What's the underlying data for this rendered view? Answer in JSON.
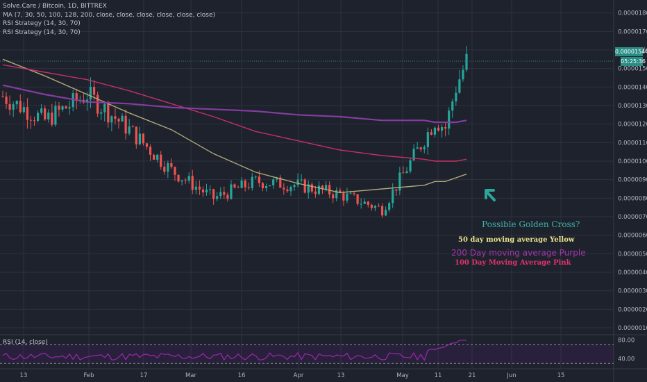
{
  "header": {
    "symbol_line": "Solve.Care / Bitcoin, 1D, BITTREX",
    "ma_line": "MA (7, 30, 50, 100, 128, 200, close, close, close, close, close, close)",
    "rsi_strategy_1": "RSI Strategy (14, 30, 70)",
    "rsi_strategy_2": "RSI Strategy (14, 30, 70)"
  },
  "rsi_pane": {
    "label": "RSI (14, close)",
    "levels": [
      "80.00",
      "40.00"
    ]
  },
  "annotations": {
    "golden_cross": "Possible Golden Cross?",
    "ma50": "50 day moving average Yellow",
    "ma200": "200 Day moving average Purple",
    "ma100": "100 Day Moving Average Pink"
  },
  "price_tag": {
    "price": "0.00001544",
    "countdown": "05:25:36"
  },
  "colors": {
    "background": "#1e222d",
    "grid": "#2e3340",
    "up": "#26a69a",
    "down": "#ef5350",
    "ma50": "#b8b07a",
    "ma100": "#d0306a",
    "ma200": "#8a3ea6",
    "rsi": "#9c27b0"
  },
  "chart_data": {
    "type": "line",
    "title": "Solve.Care / Bitcoin, 1D, BITTREX",
    "y_ticks": [
      "0.00001800",
      "0.00001700",
      "0.00001600",
      "0.00001500",
      "0.00001400",
      "0.00001300",
      "0.00001200",
      "0.00001100",
      "0.00001000",
      "0.00000900",
      "0.00000800",
      "0.00000700",
      "0.00000600",
      "0.00000500",
      "0.00000400",
      "0.00000300",
      "0.00000200",
      "0.00000100"
    ],
    "x_ticks": [
      "13",
      "Feb",
      "17",
      "Mar",
      "16",
      "Apr",
      "13",
      "May",
      "11",
      "21",
      "Jun",
      "15"
    ],
    "ylim": [
      7e-07,
      1.87e-05
    ],
    "x": [
      0,
      12,
      24,
      36,
      48,
      60,
      72,
      84,
      96,
      108,
      120,
      123,
      126,
      129,
      132
    ],
    "series": [
      {
        "name": "Price (close)",
        "values": [
          1.35e-05,
          1.22e-05,
          1.36e-05,
          1.17e-05,
          9.5e-06,
          8e-06,
          8.9e-06,
          8.7e-06,
          8.2e-06,
          7.4e-06,
          1.12e-05,
          1.22e-05,
          1.18e-05,
          1.4e-05,
          1.54e-05
        ]
      },
      {
        "name": "50 day moving average Yellow",
        "values": [
          1.55e-05,
          1.46e-05,
          1.36e-05,
          1.26e-05,
          1.17e-05,
          1.04e-05,
          9.4e-06,
          8.8e-06,
          8.3e-06,
          8.5e-06,
          8.7e-06,
          8.9e-06,
          8.9e-06,
          9.1e-06,
          9.3e-06
        ]
      },
      {
        "name": "100 Day Moving Average Pink",
        "values": [
          1.52e-05,
          1.48e-05,
          1.44e-05,
          1.38e-05,
          1.31e-05,
          1.24e-05,
          1.16e-05,
          1.11e-05,
          1.06e-05,
          1.03e-05,
          1.01e-05,
          1e-05,
          1e-05,
          1e-05,
          1.01e-05
        ]
      },
      {
        "name": "200 Day moving average Purple",
        "values": [
          1.41e-05,
          1.36e-05,
          1.32e-05,
          1.31e-05,
          1.29e-05,
          1.28e-05,
          1.27e-05,
          1.25e-05,
          1.24e-05,
          1.22e-05,
          1.22e-05,
          1.21e-05,
          1.21e-05,
          1.21e-05,
          1.22e-05
        ]
      }
    ],
    "grid": true,
    "legend": "top-left"
  }
}
